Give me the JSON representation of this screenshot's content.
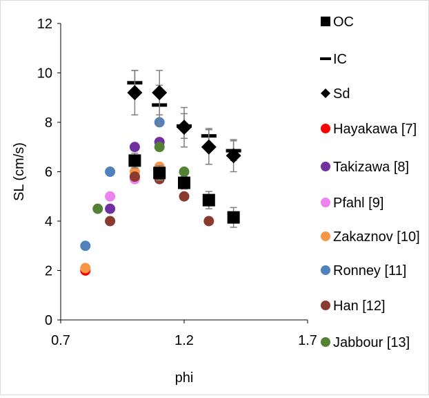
{
  "chart_data": {
    "type": "scatter",
    "xlabel": "phi",
    "ylabel": "SL (cm/s)",
    "xlim": [
      0.7,
      1.7
    ],
    "ylim": [
      0,
      12
    ],
    "xticks": [
      "0.7",
      "1.2",
      "1.7"
    ],
    "yticks": [
      "0",
      "2",
      "4",
      "6",
      "8",
      "10",
      "12"
    ],
    "grid": false,
    "legend_position": "right",
    "series": [
      {
        "name": "OC",
        "marker": "square",
        "color": "#000000",
        "points": [
          [
            1.0,
            6.45
          ],
          [
            1.1,
            5.95
          ],
          [
            1.2,
            5.55
          ],
          [
            1.3,
            4.85
          ],
          [
            1.4,
            4.15
          ]
        ],
        "err": [
          0.3,
          0.3,
          0.25,
          0.35,
          0.4
        ]
      },
      {
        "name": "IC",
        "marker": "dash",
        "color": "#000000",
        "points": [
          [
            1.0,
            9.6
          ],
          [
            1.1,
            8.7
          ],
          [
            1.2,
            7.85
          ],
          [
            1.3,
            7.45
          ],
          [
            1.4,
            6.85
          ]
        ],
        "err": [
          0.5,
          0.8,
          0.5,
          0.3,
          0.4
        ]
      },
      {
        "name": "Sd",
        "marker": "diamond",
        "color": "#000000",
        "points": [
          [
            1.0,
            9.2
          ],
          [
            1.1,
            9.2
          ],
          [
            1.2,
            7.8
          ],
          [
            1.3,
            7.0
          ],
          [
            1.4,
            6.65
          ]
        ],
        "err": [
          0.9,
          0.9,
          0.8,
          0.7,
          0.65
        ]
      },
      {
        "name": "Hayakawa [7]",
        "marker": "circle",
        "color": "#ff0000",
        "points": [
          [
            0.8,
            2.0
          ],
          [
            1.0,
            5.8
          ],
          [
            1.1,
            5.8
          ]
        ]
      },
      {
        "name": "Takizawa [8]",
        "marker": "circle",
        "color": "#7030a0",
        "points": [
          [
            0.9,
            4.5
          ],
          [
            1.0,
            7.0
          ],
          [
            1.1,
            7.2
          ]
        ]
      },
      {
        "name": "Pfahl [9]",
        "marker": "circle",
        "color": "#ee82ee",
        "points": [
          [
            0.9,
            5.0
          ],
          [
            1.0,
            5.7
          ],
          [
            1.1,
            5.9
          ]
        ]
      },
      {
        "name": "Zakaznov [10]",
        "marker": "circle",
        "color": "#f79646",
        "points": [
          [
            0.8,
            2.1
          ],
          [
            1.0,
            6.0
          ],
          [
            1.1,
            6.2
          ]
        ]
      },
      {
        "name": "Ronney [11]",
        "marker": "circle",
        "color": "#4f81bd",
        "points": [
          [
            0.8,
            3.0
          ],
          [
            0.9,
            6.0
          ],
          [
            1.1,
            8.0
          ],
          [
            1.3,
            7.0
          ]
        ]
      },
      {
        "name": "Han [12]",
        "marker": "circle",
        "color": "#8b3a2f",
        "points": [
          [
            0.9,
            4.0
          ],
          [
            1.0,
            5.8
          ],
          [
            1.1,
            5.7
          ],
          [
            1.2,
            5.0
          ],
          [
            1.3,
            4.0
          ]
        ]
      },
      {
        "name": "Jabbour [13]",
        "marker": "circle",
        "color": "#548235",
        "points": [
          [
            0.85,
            4.5
          ],
          [
            1.1,
            7.0
          ],
          [
            1.2,
            6.0
          ],
          [
            1.3,
            4.8
          ]
        ]
      }
    ]
  }
}
